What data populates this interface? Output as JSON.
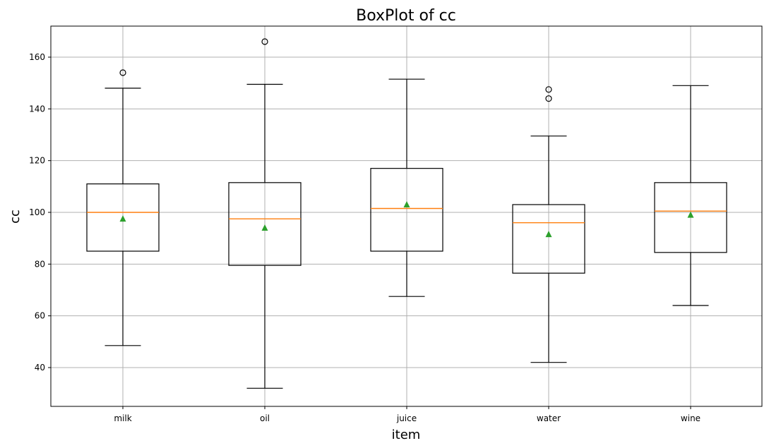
{
  "chart_data": {
    "type": "box",
    "title": "BoxPlot of cc",
    "xlabel": "item",
    "ylabel": "cc",
    "ylim": [
      25,
      172
    ],
    "yticks": [
      40,
      60,
      80,
      100,
      120,
      140,
      160
    ],
    "grid": true,
    "colors": {
      "box": "#000000",
      "median": "#ff7f0e",
      "mean": "#2ca02c",
      "grid": "#b0b0b0"
    },
    "categories": [
      "milk",
      "oil",
      "juice",
      "water",
      "wine"
    ],
    "boxes": [
      {
        "name": "milk",
        "whisker_low": 48.5,
        "q1": 85.0,
        "median": 100.0,
        "q3": 111.0,
        "whisker_high": 148.0,
        "mean": 97.5,
        "outliers": [
          154.0
        ]
      },
      {
        "name": "oil",
        "whisker_low": 32.0,
        "q1": 79.5,
        "median": 97.5,
        "q3": 111.5,
        "whisker_high": 149.5,
        "mean": 94.0,
        "outliers": [
          166.0
        ]
      },
      {
        "name": "juice",
        "whisker_low": 67.5,
        "q1": 85.0,
        "median": 101.5,
        "q3": 117.0,
        "whisker_high": 151.5,
        "mean": 103.0,
        "outliers": []
      },
      {
        "name": "water",
        "whisker_low": 42.0,
        "q1": 76.5,
        "median": 96.0,
        "q3": 103.0,
        "whisker_high": 129.5,
        "mean": 91.5,
        "outliers": [
          147.5,
          144.0
        ]
      },
      {
        "name": "wine",
        "whisker_low": 64.0,
        "q1": 84.5,
        "median": 100.5,
        "q3": 111.5,
        "whisker_high": 149.0,
        "mean": 99.0,
        "outliers": []
      }
    ]
  }
}
